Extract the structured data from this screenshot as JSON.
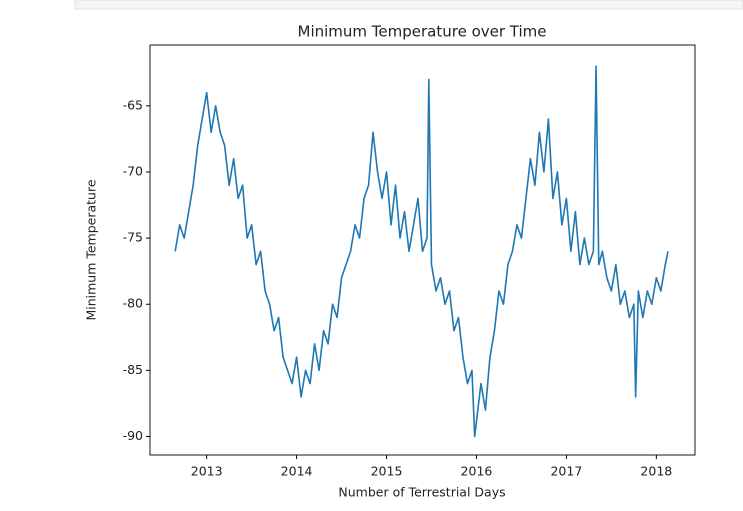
{
  "chart_data": {
    "type": "line",
    "title": "Minimum Temperature over Time",
    "x_label": "Number of Terrestrial Days",
    "y_label": "Minimum Temperature",
    "color": "#1f77b4",
    "x": [
      2012.65,
      2012.7,
      2012.75,
      2012.8,
      2012.85,
      2012.9,
      2012.95,
      2013.0,
      2013.05,
      2013.1,
      2013.15,
      2013.2,
      2013.25,
      2013.3,
      2013.35,
      2013.4,
      2013.45,
      2013.5,
      2013.55,
      2013.6,
      2013.65,
      2013.7,
      2013.75,
      2013.8,
      2013.85,
      2013.9,
      2013.95,
      2014.0,
      2014.05,
      2014.1,
      2014.15,
      2014.2,
      2014.25,
      2014.3,
      2014.35,
      2014.4,
      2014.45,
      2014.5,
      2014.55,
      2014.6,
      2014.65,
      2014.7,
      2014.75,
      2014.8,
      2014.85,
      2014.9,
      2014.95,
      2015.0,
      2015.05,
      2015.1,
      2015.15,
      2015.2,
      2015.25,
      2015.3,
      2015.35,
      2015.4,
      2015.45,
      2015.47,
      2015.5,
      2015.55,
      2015.6,
      2015.65,
      2015.7,
      2015.75,
      2015.8,
      2015.85,
      2015.9,
      2015.95,
      2015.98,
      2016.05,
      2016.1,
      2016.15,
      2016.2,
      2016.25,
      2016.3,
      2016.35,
      2016.4,
      2016.45,
      2016.5,
      2016.55,
      2016.6,
      2016.65,
      2016.7,
      2016.75,
      2016.8,
      2016.85,
      2016.9,
      2016.95,
      2017.0,
      2017.05,
      2017.1,
      2017.15,
      2017.2,
      2017.25,
      2017.3,
      2017.33,
      2017.36,
      2017.4,
      2017.45,
      2017.5,
      2017.55,
      2017.6,
      2017.65,
      2017.7,
      2017.75,
      2017.77,
      2017.8,
      2017.85,
      2017.9,
      2017.95,
      2018.0,
      2018.05,
      2018.1,
      2018.13
    ],
    "values": [
      -76,
      -74,
      -75,
      -73,
      -71,
      -68,
      -66,
      -64,
      -67,
      -65,
      -67,
      -68,
      -71,
      -69,
      -72,
      -71,
      -75,
      -74,
      -77,
      -76,
      -79,
      -80,
      -82,
      -81,
      -84,
      -85,
      -86,
      -84,
      -87,
      -85,
      -86,
      -83,
      -85,
      -82,
      -83,
      -80,
      -81,
      -78,
      -77,
      -76,
      -74,
      -75,
      -72,
      -71,
      -67,
      -70,
      -72,
      -70,
      -74,
      -71,
      -75,
      -73,
      -76,
      -74,
      -72,
      -76,
      -75,
      -63,
      -77,
      -79,
      -78,
      -80,
      -79,
      -82,
      -81,
      -84,
      -86,
      -85,
      -90,
      -86,
      -88,
      -84,
      -82,
      -79,
      -80,
      -77,
      -76,
      -74,
      -75,
      -72,
      -69,
      -71,
      -67,
      -70,
      -66,
      -72,
      -70,
      -74,
      -72,
      -76,
      -73,
      -77,
      -75,
      -77,
      -76,
      -62,
      -77,
      -76,
      -78,
      -79,
      -77,
      -80,
      -79,
      -81,
      -80,
      -87,
      -79,
      -81,
      -79,
      -80,
      -78,
      -79,
      -77,
      -76
    ],
    "xlim": [
      2012.37,
      2018.43
    ],
    "ylim": [
      -91.4,
      -60.4
    ],
    "xticks": [
      2013,
      2014,
      2015,
      2016,
      2017,
      2018
    ],
    "yticks": [
      -90,
      -85,
      -80,
      -75,
      -70,
      -65
    ]
  }
}
